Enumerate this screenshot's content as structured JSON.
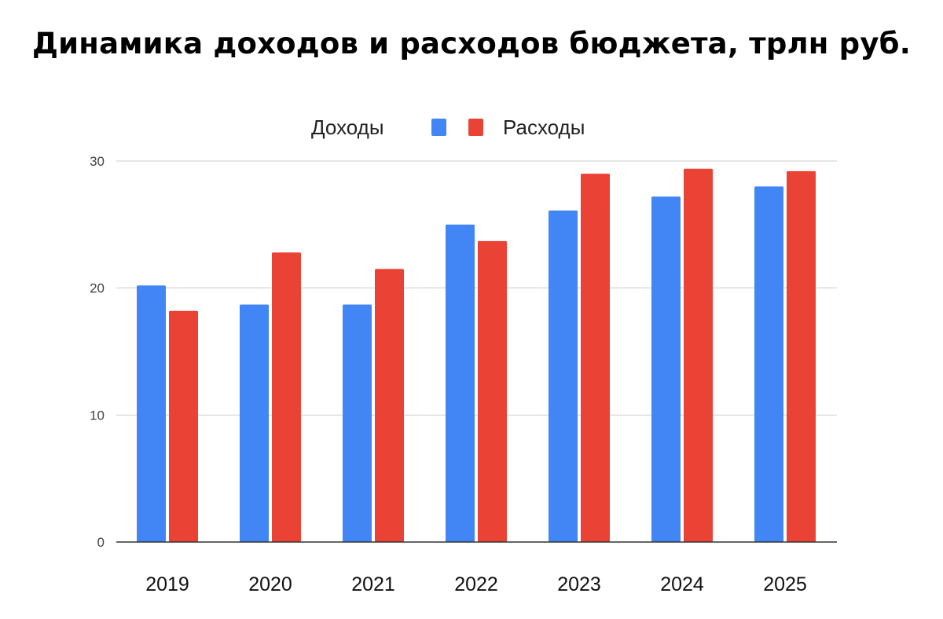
{
  "title": "Динамика доходов и расходов бюджета, трлн руб.",
  "legend": {
    "position": "top",
    "items": [
      {
        "label": "Доходы",
        "color": "#4285f4"
      },
      {
        "label": "Расходы",
        "color": "#ea4335"
      }
    ]
  },
  "chart_data": {
    "type": "bar",
    "categories": [
      "2019",
      "2020",
      "2021",
      "2022",
      "2023",
      "2024",
      "2025"
    ],
    "series": [
      {
        "name": "Доходы",
        "color": "#4285f4",
        "values": [
          20.2,
          18.7,
          18.7,
          25.0,
          26.1,
          27.2,
          28.0
        ]
      },
      {
        "name": "Расходы",
        "color": "#ea4335",
        "values": [
          18.2,
          22.8,
          21.5,
          23.7,
          29.0,
          29.4,
          29.2
        ]
      }
    ],
    "ylim": [
      0,
      30
    ],
    "yticks": [
      "0",
      "10",
      "20",
      "30"
    ],
    "grid": true,
    "xlabel": "",
    "ylabel": ""
  }
}
